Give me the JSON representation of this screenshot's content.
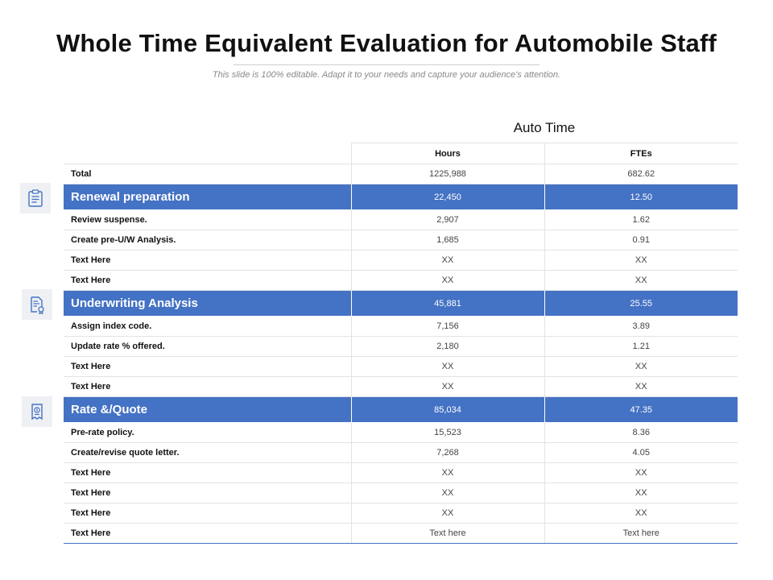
{
  "title": "Whole Time Equivalent Evaluation for Automobile Staff",
  "subtitle": "This slide is 100% editable. Adapt it to your needs and capture your audience's attention.",
  "group_header": "Auto Time",
  "columns": [
    "Hours",
    "FTEs"
  ],
  "colors": {
    "section_fill": "#4472c4",
    "icon_stroke": "#4472c4",
    "icon_bg": "#eef0f4"
  },
  "icons": [
    "clipboard-icon",
    "document-certificate-icon",
    "receipt-quote-icon"
  ],
  "rows": [
    {
      "label": "Total",
      "hours": "1225,988",
      "ftes": "682.62"
    },
    {
      "label": "Renewal preparation",
      "hours": "22,450",
      "ftes": "12.50"
    },
    {
      "label": "Review suspense.",
      "hours": "2,907",
      "ftes": "1.62"
    },
    {
      "label": "Create pre-U/W Analysis.",
      "hours": "1,685",
      "ftes": "0.91"
    },
    {
      "label": "Text Here",
      "hours": "XX",
      "ftes": "XX"
    },
    {
      "label": "Text Here",
      "hours": "XX",
      "ftes": "XX"
    },
    {
      "label": "Underwriting Analysis",
      "hours": "45,881",
      "ftes": "25.55"
    },
    {
      "label": "Assign index code.",
      "hours": "7,156",
      "ftes": "3.89"
    },
    {
      "label": "Update rate % offered.",
      "hours": "2,180",
      "ftes": "1.21"
    },
    {
      "label": "Text Here",
      "hours": "XX",
      "ftes": "XX"
    },
    {
      "label": "Text Here",
      "hours": "XX",
      "ftes": "XX"
    },
    {
      "label": "Rate &/Quote",
      "hours": "85,034",
      "ftes": "47.35"
    },
    {
      "label": "Pre-rate policy.",
      "hours": "15,523",
      "ftes": "8.36"
    },
    {
      "label": "Create/revise quote letter.",
      "hours": "7,268",
      "ftes": "4.05"
    },
    {
      "label": "Text Here",
      "hours": "XX",
      "ftes": "XX"
    },
    {
      "label": "Text Here",
      "hours": "XX",
      "ftes": "XX"
    },
    {
      "label": "Text Here",
      "hours": "XX",
      "ftes": "XX"
    },
    {
      "label": "Text Here",
      "hours": "Text here",
      "ftes": "Text here"
    }
  ]
}
